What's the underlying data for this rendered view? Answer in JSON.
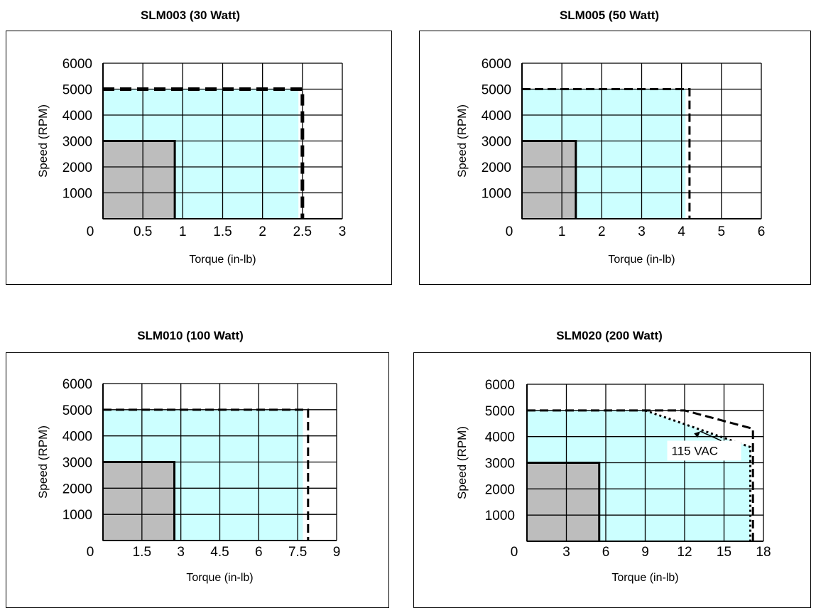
{
  "chart_data": [
    {
      "type": "area",
      "title": "SLM003 (30 Watt)",
      "xlabel": "Torque (in-lb)",
      "ylabel": "Speed (RPM)",
      "xticks": [
        "0",
        "0.5",
        "1",
        "1.5",
        "2",
        "2.5",
        "3"
      ],
      "yticks": [
        "1000",
        "2000",
        "3000",
        "4000",
        "5000",
        "6000"
      ],
      "xlim": [
        0,
        3
      ],
      "ylim": [
        0,
        6000
      ],
      "continuous_region": {
        "torque": 0.9,
        "speed": 3000
      },
      "intermittent_region": {
        "torque": 2.45,
        "speed": 5000
      },
      "peak_limit": [
        [
          0,
          5000
        ],
        [
          2.5,
          5000
        ],
        [
          2.5,
          0
        ]
      ]
    },
    {
      "type": "area",
      "title": "SLM005 (50 Watt)",
      "xlabel": "Torque (in-lb)",
      "ylabel": "Speed (RPM)",
      "xticks": [
        "0",
        "1",
        "2",
        "3",
        "4",
        "5",
        "6"
      ],
      "yticks": [
        "1000",
        "2000",
        "3000",
        "4000",
        "5000",
        "6000"
      ],
      "xlim": [
        0,
        6
      ],
      "ylim": [
        0,
        6000
      ],
      "continuous_region": {
        "torque": 1.35,
        "speed": 3000
      },
      "intermittent_region": {
        "torque": 4.1,
        "speed": 5000
      },
      "peak_limit": [
        [
          0,
          5000
        ],
        [
          4.2,
          5000
        ],
        [
          4.2,
          0
        ]
      ]
    },
    {
      "type": "area",
      "title": "SLM010 (100 Watt)",
      "xlabel": "Torque (in-lb)",
      "ylabel": "Speed (RPM)",
      "xticks": [
        "0",
        "1.5",
        "3",
        "4.5",
        "6",
        "7.5",
        "9"
      ],
      "yticks": [
        "1000",
        "2000",
        "3000",
        "4000",
        "5000",
        "6000"
      ],
      "xlim": [
        0,
        9
      ],
      "ylim": [
        0,
        6000
      ],
      "continuous_region": {
        "torque": 2.75,
        "speed": 3000
      },
      "intermittent_region": {
        "torque": 7.7,
        "speed": 5000
      },
      "peak_limit": [
        [
          0,
          5000
        ],
        [
          7.9,
          5000
        ],
        [
          7.9,
          0
        ]
      ]
    },
    {
      "type": "area",
      "title": "SLM020 (200 Watt)",
      "xlabel": "Torque (in-lb)",
      "ylabel": "Speed (RPM)",
      "xticks": [
        "0",
        "3",
        "6",
        "9",
        "12",
        "15",
        "18"
      ],
      "yticks": [
        "1000",
        "2000",
        "3000",
        "4000",
        "5000",
        "6000"
      ],
      "xlim": [
        0,
        18
      ],
      "ylim": [
        0,
        6000
      ],
      "continuous_region": {
        "torque": 5.5,
        "speed": 3000
      },
      "intermittent_polygon": [
        [
          0,
          5000
        ],
        [
          9,
          5000
        ],
        [
          17,
          3600
        ],
        [
          17,
          0
        ],
        [
          0,
          0
        ]
      ],
      "peak_limit": [
        [
          0,
          5000
        ],
        [
          12,
          5000
        ],
        [
          17.2,
          4300
        ],
        [
          17.2,
          0
        ]
      ],
      "vac115_limit": [
        [
          9,
          5000
        ],
        [
          17,
          3600
        ],
        [
          17,
          0
        ]
      ],
      "annotation": {
        "text": "115 VAC",
        "x": 11,
        "y": 3300,
        "arrow_to": [
          13.2,
          4200
        ]
      }
    }
  ],
  "colors": {
    "continuous_fill": "#bdbdbd",
    "intermittent_fill": "#ccffff",
    "grid": "#000000"
  }
}
